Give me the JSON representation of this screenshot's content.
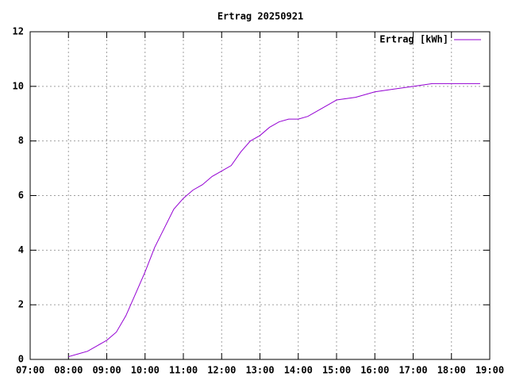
{
  "chart_data": {
    "type": "line",
    "title": "Ertrag 20250921",
    "x": [
      "08:00",
      "08:15",
      "08:30",
      "08:45",
      "09:00",
      "09:15",
      "09:30",
      "09:45",
      "10:00",
      "10:15",
      "10:30",
      "10:45",
      "11:00",
      "11:15",
      "11:30",
      "11:45",
      "12:00",
      "12:15",
      "12:30",
      "12:45",
      "13:00",
      "13:15",
      "13:30",
      "13:45",
      "14:00",
      "14:15",
      "14:30",
      "14:45",
      "15:00",
      "15:30",
      "16:00",
      "16:30",
      "17:00",
      "17:30",
      "18:45"
    ],
    "series": [
      {
        "name": "Ertrag [kWh]",
        "color": "#9400d3",
        "values": [
          0.1,
          0.2,
          0.3,
          0.5,
          0.7,
          1.0,
          1.6,
          2.4,
          3.2,
          4.1,
          4.8,
          5.5,
          5.9,
          6.2,
          6.4,
          6.7,
          6.9,
          7.1,
          7.6,
          8.0,
          8.2,
          8.5,
          8.7,
          8.8,
          8.8,
          8.9,
          9.1,
          9.3,
          9.5,
          9.6,
          9.8,
          9.9,
          10.0,
          10.1,
          10.1
        ]
      }
    ],
    "xlim": [
      "07:00",
      "19:00"
    ],
    "xticks": [
      "07:00",
      "08:00",
      "09:00",
      "10:00",
      "11:00",
      "12:00",
      "13:00",
      "14:00",
      "15:00",
      "16:00",
      "17:00",
      "18:00",
      "19:00"
    ],
    "ylim": [
      0,
      12
    ],
    "yticks": [
      0,
      2,
      4,
      6,
      8,
      10,
      12
    ],
    "grid": true,
    "legend": "top-right"
  }
}
